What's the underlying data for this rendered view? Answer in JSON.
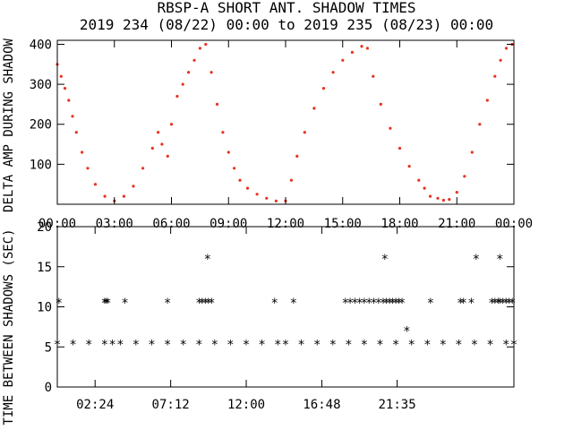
{
  "title": "RBSP-A SHORT ANT. SHADOW TIMES",
  "subtitle": "2019 234 (08/22) 00:00 to 2019 235 (08/23) 00:00",
  "colors": {
    "panel1_points": "#e8321e",
    "panel2_points": "#000000",
    "axes": "#000000"
  },
  "chart_data": [
    {
      "type": "scatter",
      "ylabel": "DELTA AMP DURING SHADOW",
      "xlabel": "",
      "xlim": [
        0,
        24
      ],
      "ylim": [
        0,
        410
      ],
      "x_ticks": [
        0,
        3,
        6,
        9,
        12,
        15,
        18,
        21,
        24
      ],
      "x_tick_labels": [
        "00:00",
        "03:00",
        "06:00",
        "09:00",
        "12:00",
        "15:00",
        "18:00",
        "21:00",
        "00:00"
      ],
      "y_ticks": [
        100,
        200,
        300,
        400
      ],
      "y_tick_labels": [
        "100",
        "200",
        "300",
        "400"
      ],
      "marker": "dot",
      "marker_color": "#e8321e",
      "series": [
        {
          "x": [
            0.0,
            0.2,
            0.4,
            0.6,
            0.8,
            1.0,
            1.3,
            1.6,
            2.0,
            2.5,
            3.0,
            3.5,
            4.0,
            4.5,
            5.0,
            5.3,
            5.5,
            5.8,
            6.0,
            6.3,
            6.6,
            6.9,
            7.2,
            7.5,
            7.8,
            8.1,
            8.4,
            8.7,
            9.0,
            9.3,
            9.6,
            10.0,
            10.5,
            11.0,
            11.5,
            12.0,
            12.3,
            12.6,
            13.0,
            13.5,
            14.0,
            14.5,
            15.0,
            15.5,
            16.0,
            16.3,
            16.6,
            17.0,
            17.5,
            18.0,
            18.5,
            19.0,
            19.3,
            19.6,
            20.0,
            20.3,
            20.6,
            21.0,
            21.4,
            21.8,
            22.2,
            22.6,
            23.0,
            23.3,
            23.6,
            23.9
          ],
          "y": [
            350,
            320,
            290,
            260,
            220,
            180,
            130,
            90,
            50,
            20,
            8,
            20,
            45,
            90,
            140,
            180,
            150,
            120,
            200,
            270,
            300,
            330,
            360,
            390,
            400,
            330,
            250,
            180,
            130,
            90,
            60,
            40,
            25,
            15,
            8,
            8,
            60,
            120,
            180,
            240,
            290,
            330,
            360,
            380,
            395,
            390,
            320,
            250,
            190,
            140,
            95,
            60,
            40,
            20,
            15,
            10,
            12,
            30,
            70,
            130,
            200,
            260,
            320,
            360,
            390,
            400
          ]
        }
      ]
    },
    {
      "type": "scatter",
      "ylabel": "TIME BETWEEN SHADOWS (SEC)",
      "xlabel": "",
      "xlim": [
        0,
        29
      ],
      "ylim": [
        0,
        20
      ],
      "x_ticks": [
        2.4,
        7.2,
        12.0,
        16.8,
        21.583
      ],
      "x_tick_labels": [
        "02:24",
        "07:12",
        "12:00",
        "16:48",
        "21:35"
      ],
      "y_ticks": [
        0,
        5,
        10,
        15,
        20
      ],
      "y_tick_labels": [
        "0",
        "5",
        "10",
        "15",
        "20"
      ],
      "marker": "asterisk",
      "marker_color": "#000000",
      "series": [
        {
          "x": [
            0.1,
            3.0,
            3.1,
            3.2,
            4.3,
            7.0,
            9.0,
            9.2,
            9.4,
            9.6,
            9.8,
            9.55,
            13.8,
            15.0,
            18.3,
            18.6,
            18.9,
            19.2,
            19.5,
            19.8,
            20.1,
            20.4,
            20.7,
            20.9,
            21.1,
            21.3,
            21.5,
            21.7,
            21.9,
            20.8,
            22.2,
            23.7,
            25.6,
            25.8,
            26.3,
            26.6,
            27.6,
            27.8,
            28.0,
            28.1,
            28.3,
            28.5,
            28.7,
            28.9,
            28.1
          ],
          "y": [
            10.5,
            10.5,
            10.5,
            10.5,
            10.5,
            10.5,
            10.5,
            10.5,
            10.5,
            10.5,
            10.5,
            16,
            10.5,
            10.5,
            10.5,
            10.5,
            10.5,
            10.5,
            10.5,
            10.5,
            10.5,
            10.5,
            10.5,
            10.5,
            10.5,
            10.5,
            10.5,
            10.5,
            10.5,
            16,
            7,
            10.5,
            10.5,
            10.5,
            10.5,
            16,
            10.5,
            10.5,
            10.5,
            10.5,
            10.5,
            10.5,
            10.5,
            10.5,
            16
          ]
        },
        {
          "x": [
            0.0,
            1.0,
            2.0,
            3.0,
            3.5,
            4.0,
            5.0,
            6.0,
            7.0,
            8.0,
            9.0,
            10.0,
            11.0,
            12.0,
            13.0,
            14.0,
            14.5,
            15.5,
            16.5,
            17.5,
            18.5,
            19.5,
            20.5,
            21.5,
            22.5,
            23.5,
            24.5,
            25.5,
            26.5,
            27.5,
            28.5,
            29.0
          ],
          "y": [
            5.3,
            5.3,
            5.3,
            5.3,
            5.3,
            5.3,
            5.3,
            5.3,
            5.3,
            5.3,
            5.3,
            5.3,
            5.3,
            5.3,
            5.3,
            5.3,
            5.3,
            5.3,
            5.3,
            5.3,
            5.3,
            5.3,
            5.3,
            5.3,
            5.3,
            5.3,
            5.3,
            5.3,
            5.3,
            5.3,
            5.3,
            5.3
          ]
        }
      ]
    }
  ]
}
